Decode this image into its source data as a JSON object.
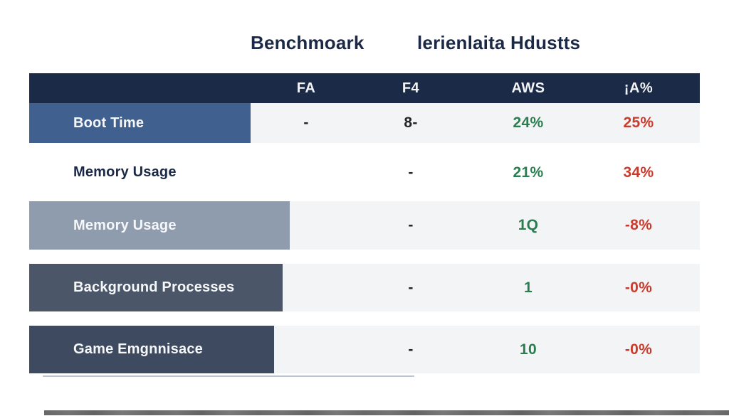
{
  "titles": {
    "left": "Benchmoark",
    "right": "lerienlaita Hdustts"
  },
  "table": {
    "header": {
      "bg": "#1b2a47",
      "text_color": "#f2f4f7",
      "col1": "FA",
      "col2": "F4",
      "col3": "AWS",
      "col4": "¡A%"
    },
    "colors": {
      "green": "#2a7d4f",
      "red": "#cc3a2b",
      "dash": "#262626",
      "row_values_bg": "#f2f4f6",
      "title_navy": "#1c2946"
    },
    "rows": [
      {
        "label": "Boot Time",
        "label_bg": "#40608f",
        "label_color": "#f6f7f9",
        "values": [
          {
            "text": "-",
            "color": "#262626"
          },
          {
            "text": "8-",
            "color": "#262626"
          },
          {
            "text": "24%",
            "color": "#2a7d4f"
          },
          {
            "text": "25%",
            "color": "#cc3a2b"
          }
        ]
      },
      {
        "label": "Memory Usage",
        "label_bg": "",
        "label_color": "#1c2946",
        "values": [
          {
            "text": "",
            "color": "#262626"
          },
          {
            "text": "-",
            "color": "#262626"
          },
          {
            "text": "21%",
            "color": "#2a7d4f"
          },
          {
            "text": "34%",
            "color": "#cc3a2b"
          }
        ]
      },
      {
        "label": "Memory Usage",
        "label_bg": "#8e9cae",
        "label_color": "#f6f7f9",
        "values": [
          {
            "text": "",
            "color": "#262626"
          },
          {
            "text": "-",
            "color": "#262626"
          },
          {
            "text": "1Q",
            "color": "#2a7d4f"
          },
          {
            "text": "-8%",
            "color": "#cc3a2b"
          }
        ]
      },
      {
        "label": "Background Processes",
        "label_bg": "#4b5769",
        "label_color": "#f6f7f9",
        "values": [
          {
            "text": "",
            "color": "#262626"
          },
          {
            "text": "-",
            "color": "#262626"
          },
          {
            "text": "1",
            "color": "#2a7d4f"
          },
          {
            "text": "-0%",
            "color": "#cc3a2b"
          }
        ]
      },
      {
        "label": "Game Emgnnisace",
        "label_bg": "#3e4a5f",
        "label_color": "#f6f7f9",
        "values": [
          {
            "text": "",
            "color": "#262626"
          },
          {
            "text": "-",
            "color": "#262626"
          },
          {
            "text": "10",
            "color": "#2a7d4f"
          },
          {
            "text": "-0%",
            "color": "#cc3a2b"
          }
        ]
      }
    ]
  },
  "chart_data": {
    "type": "table",
    "title": "Benchmoark lerienlaita Hdustts",
    "columns": [
      "",
      "FA",
      "F4",
      "AWS",
      "¡A%"
    ],
    "rows": [
      [
        "Boot Time",
        "-",
        "8-",
        "24%",
        "25%"
      ],
      [
        "Memory Usage",
        "",
        "-",
        "21%",
        "34%"
      ],
      [
        "Memory Usage",
        "",
        "-",
        "1Q",
        "-8%"
      ],
      [
        "Background Processes",
        "",
        "-",
        "1",
        "-0%"
      ],
      [
        "Game Emgnnisace",
        "",
        "-",
        "10",
        "-0%"
      ]
    ],
    "value_color_legend": {
      "AWS_column": "green",
      "percent_column": "red"
    }
  }
}
